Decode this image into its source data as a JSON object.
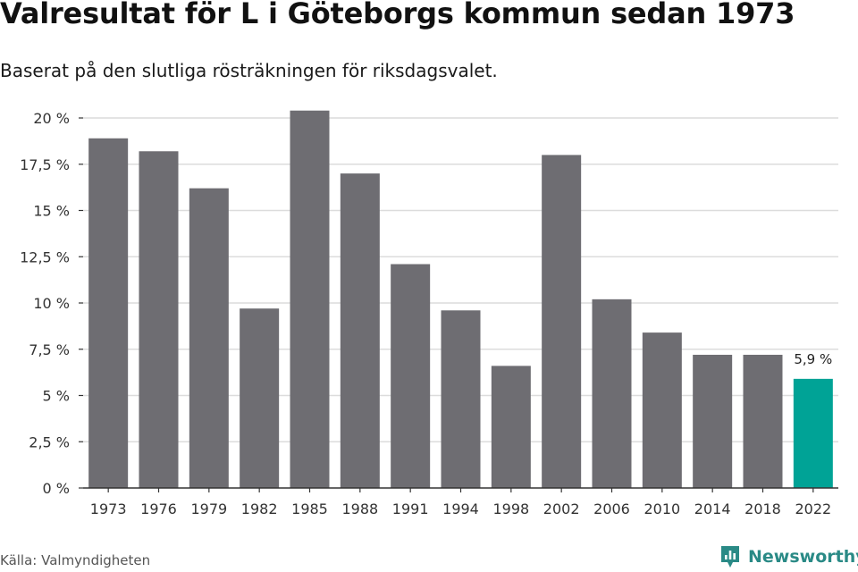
{
  "header": {
    "title": "Valresultat för L i Göteborgs kommun sedan 1973",
    "subtitle": "Baserat på den slutliga rösträkningen för riksdagsvalet."
  },
  "footer": {
    "source": "Källa: Valmyndigheten",
    "brand": "Newsworthy",
    "brand_icon": "newsworthy-logo-icon"
  },
  "colors": {
    "bar": "#6e6d72",
    "highlight": "#00a396",
    "grid": "#dcdcdc",
    "axis": "#333333",
    "brand": "#2a8a86"
  },
  "chart_data": {
    "type": "bar",
    "categories": [
      "1973",
      "1976",
      "1979",
      "1982",
      "1985",
      "1988",
      "1991",
      "1994",
      "1998",
      "2002",
      "2006",
      "2010",
      "2014",
      "2018",
      "2022"
    ],
    "values": [
      18.9,
      18.2,
      16.2,
      9.7,
      20.4,
      17.0,
      12.1,
      9.6,
      6.6,
      18.0,
      10.2,
      8.4,
      7.2,
      7.2,
      5.9
    ],
    "highlight_index": 14,
    "data_labels": [
      {
        "index": 14,
        "text": "5,9 %"
      }
    ],
    "ylim": [
      0,
      20
    ],
    "yticks": [
      0,
      2.5,
      5,
      7.5,
      10,
      12.5,
      15,
      17.5,
      20
    ],
    "ytick_labels": [
      "0 %",
      "2,5 %",
      "5 %",
      "7,5 %",
      "10 %",
      "12,5 %",
      "15 %",
      "17,5 %",
      "20 %"
    ],
    "grid": true,
    "xlabel": "",
    "ylabel": ""
  }
}
